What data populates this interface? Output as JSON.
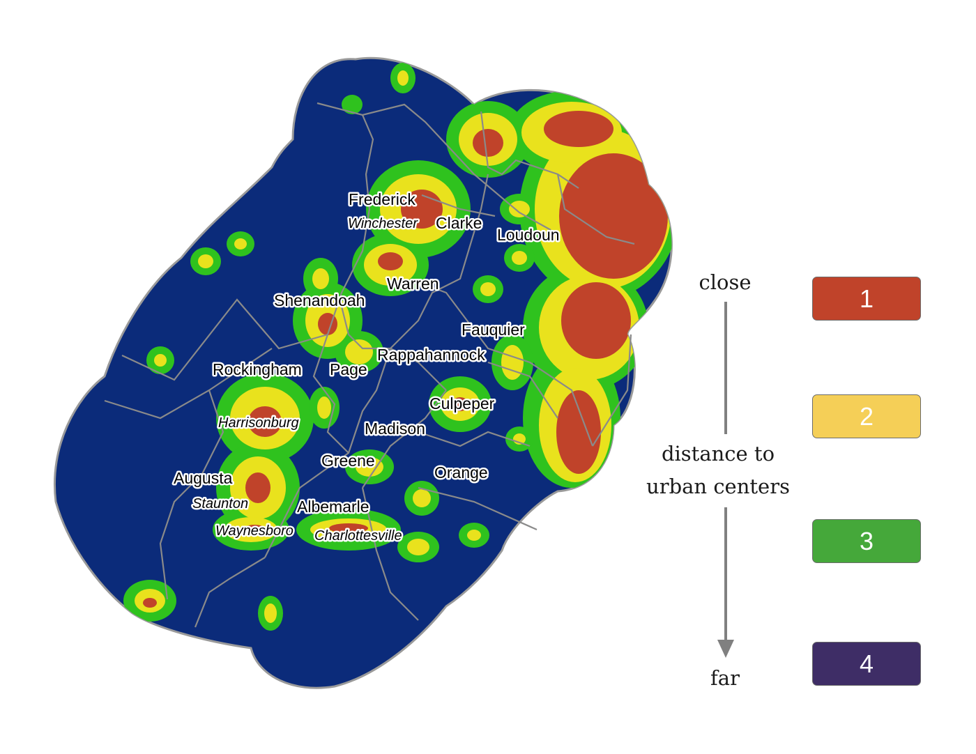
{
  "map": {
    "labels": {
      "frederick": "Frederick",
      "winchester": "Winchester",
      "clarke": "Clarke",
      "loudoun": "Loudoun",
      "warren": "Warren",
      "shenandoah": "Shenandoah",
      "fauquier": "Fauquier",
      "rappahannock": "Rappahannock",
      "rockingham": "Rockingham",
      "page": "Page",
      "culpeper": "Culpeper",
      "harrisonburg": "Harrisonburg",
      "madison": "Madison",
      "greene": "Greene",
      "orange": "Orange",
      "augusta": "Augusta",
      "staunton": "Staunton",
      "albemarle": "Albemarle",
      "waynesboro": "Waynesboro",
      "charlottesville": "Charlottesville"
    },
    "colors": {
      "background_region": "#0b2b7a",
      "class_1": "#c0432a",
      "class_2": "#e9e21d",
      "class_3": "#2fc21e"
    }
  },
  "legend": {
    "top_word": "close",
    "middle_text_line1": "distance to",
    "middle_text_line2": "urban centers",
    "bottom_word": "far",
    "classes": [
      {
        "value": "1",
        "color": "#c0432a"
      },
      {
        "value": "2",
        "color": "#f5cf57"
      },
      {
        "value": "3",
        "color": "#45a83a"
      },
      {
        "value": "4",
        "color": "#3e2d66"
      }
    ]
  }
}
